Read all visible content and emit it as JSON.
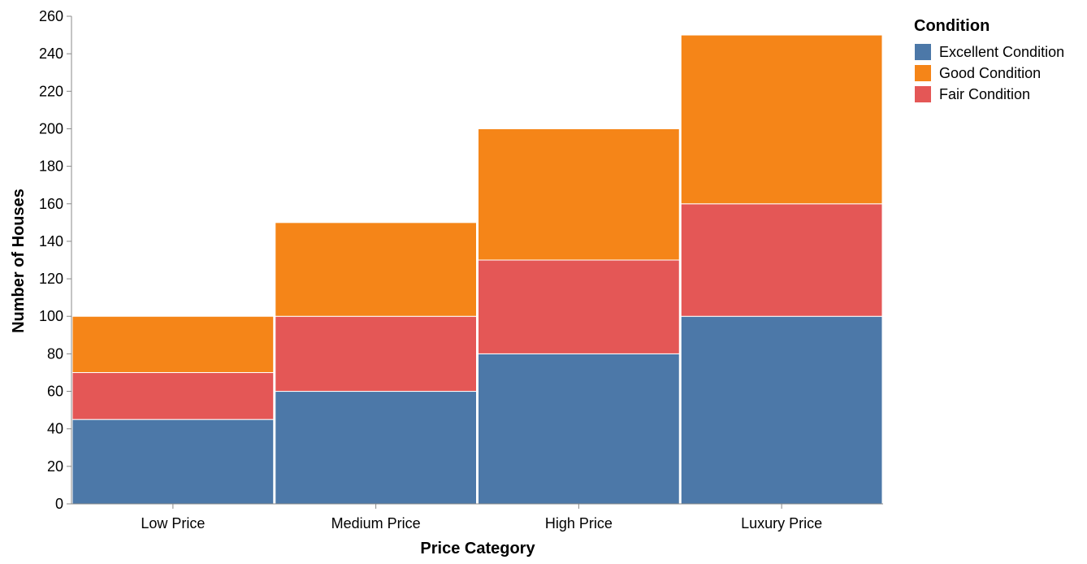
{
  "chart_data": {
    "type": "bar",
    "stacked": true,
    "categories": [
      "Low Price",
      "Medium Price",
      "High Price",
      "Luxury Price"
    ],
    "series": [
      {
        "name": "Excellent Condition",
        "color": "#4c78a8",
        "values": [
          45,
          60,
          80,
          100
        ]
      },
      {
        "name": "Fair Condition",
        "color": "#e45756",
        "values": [
          25,
          40,
          50,
          60
        ]
      },
      {
        "name": "Good Condition",
        "color": "#f58518",
        "values": [
          30,
          50,
          70,
          90
        ]
      }
    ],
    "xlabel": "Price Category",
    "ylabel": "Number of Houses",
    "ylim": [
      0,
      260
    ],
    "yticks": [
      0,
      20,
      40,
      60,
      80,
      100,
      120,
      140,
      160,
      180,
      200,
      220,
      240,
      260
    ],
    "legend": {
      "title": "Condition",
      "placement": "right",
      "entries": [
        {
          "label": "Excellent Condition",
          "color": "#4c78a8"
        },
        {
          "label": "Good Condition",
          "color": "#f58518"
        },
        {
          "label": "Fair Condition",
          "color": "#e45756"
        }
      ]
    },
    "grid": false
  }
}
